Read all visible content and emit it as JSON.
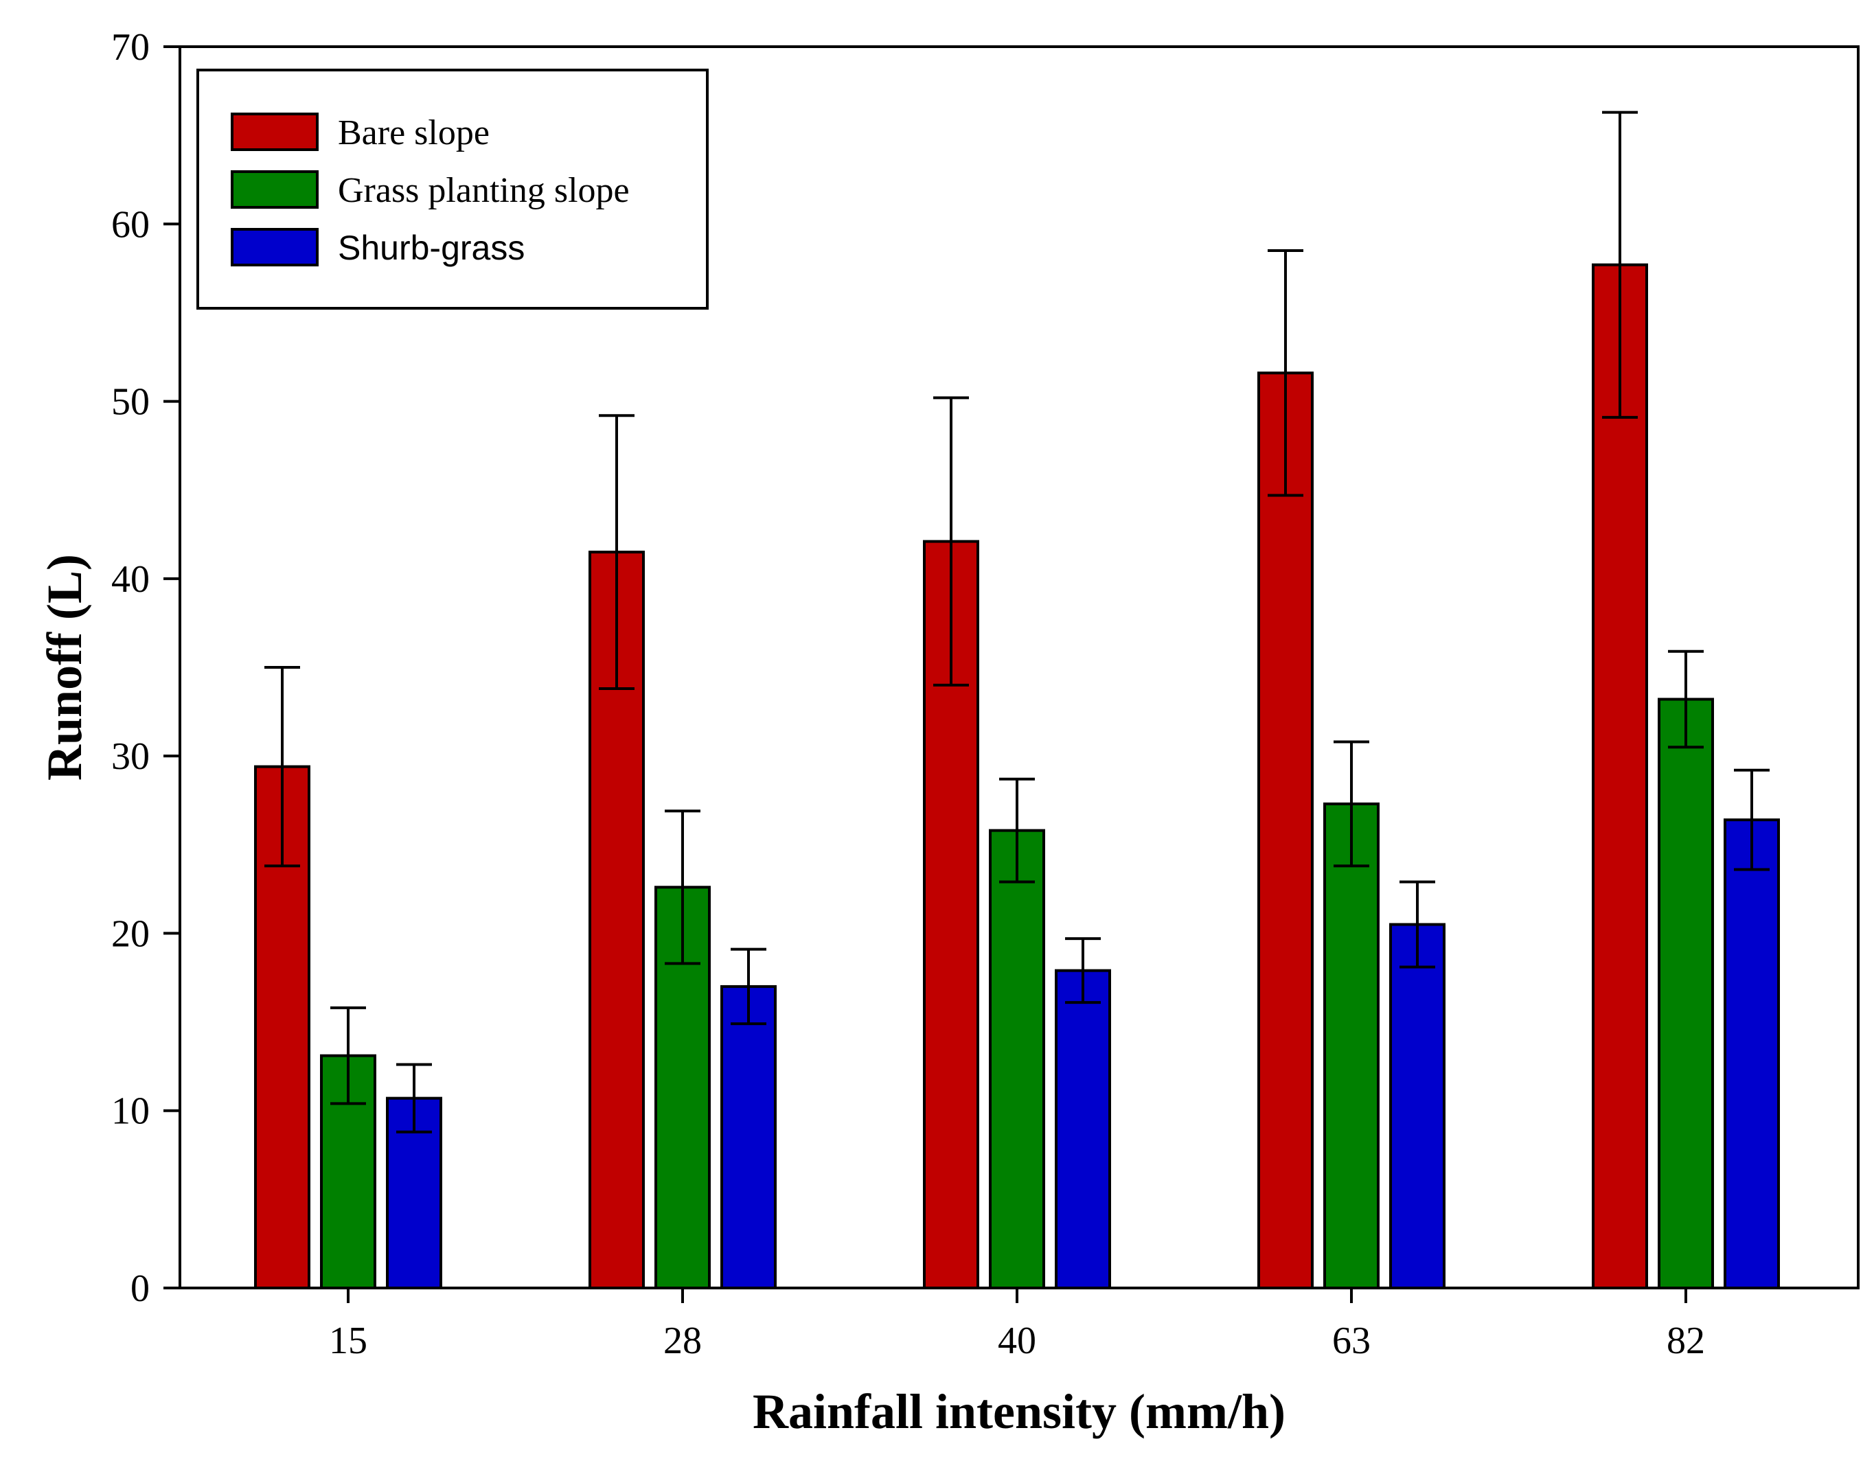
{
  "chart_data": {
    "type": "bar",
    "title": "",
    "xlabel": "Rainfall intensity (mm/h)",
    "ylabel": "Runoff (L)",
    "ylim": [
      0,
      70
    ],
    "yticks": [
      "0",
      "10",
      "20",
      "30",
      "40",
      "50",
      "60",
      "70"
    ],
    "categories": [
      "15",
      "28",
      "40",
      "63",
      "82"
    ],
    "legend_position": "top-left",
    "grid": false,
    "series": [
      {
        "name": "Bare slope",
        "color": "#c00000",
        "values": [
          29.4,
          41.5,
          42.1,
          51.6,
          57.7
        ],
        "error": [
          5.6,
          7.7,
          8.1,
          6.9,
          8.6
        ]
      },
      {
        "name": "Grass planting slope",
        "color": "#008000",
        "values": [
          13.1,
          22.6,
          25.8,
          27.3,
          33.2
        ],
        "error": [
          2.7,
          4.3,
          2.9,
          3.5,
          2.7
        ]
      },
      {
        "name": "Shurb-grass",
        "color": "#0000cc",
        "values": [
          10.7,
          17.0,
          17.9,
          20.5,
          26.4
        ],
        "error": [
          1.9,
          2.1,
          1.8,
          2.4,
          2.8
        ]
      }
    ]
  }
}
